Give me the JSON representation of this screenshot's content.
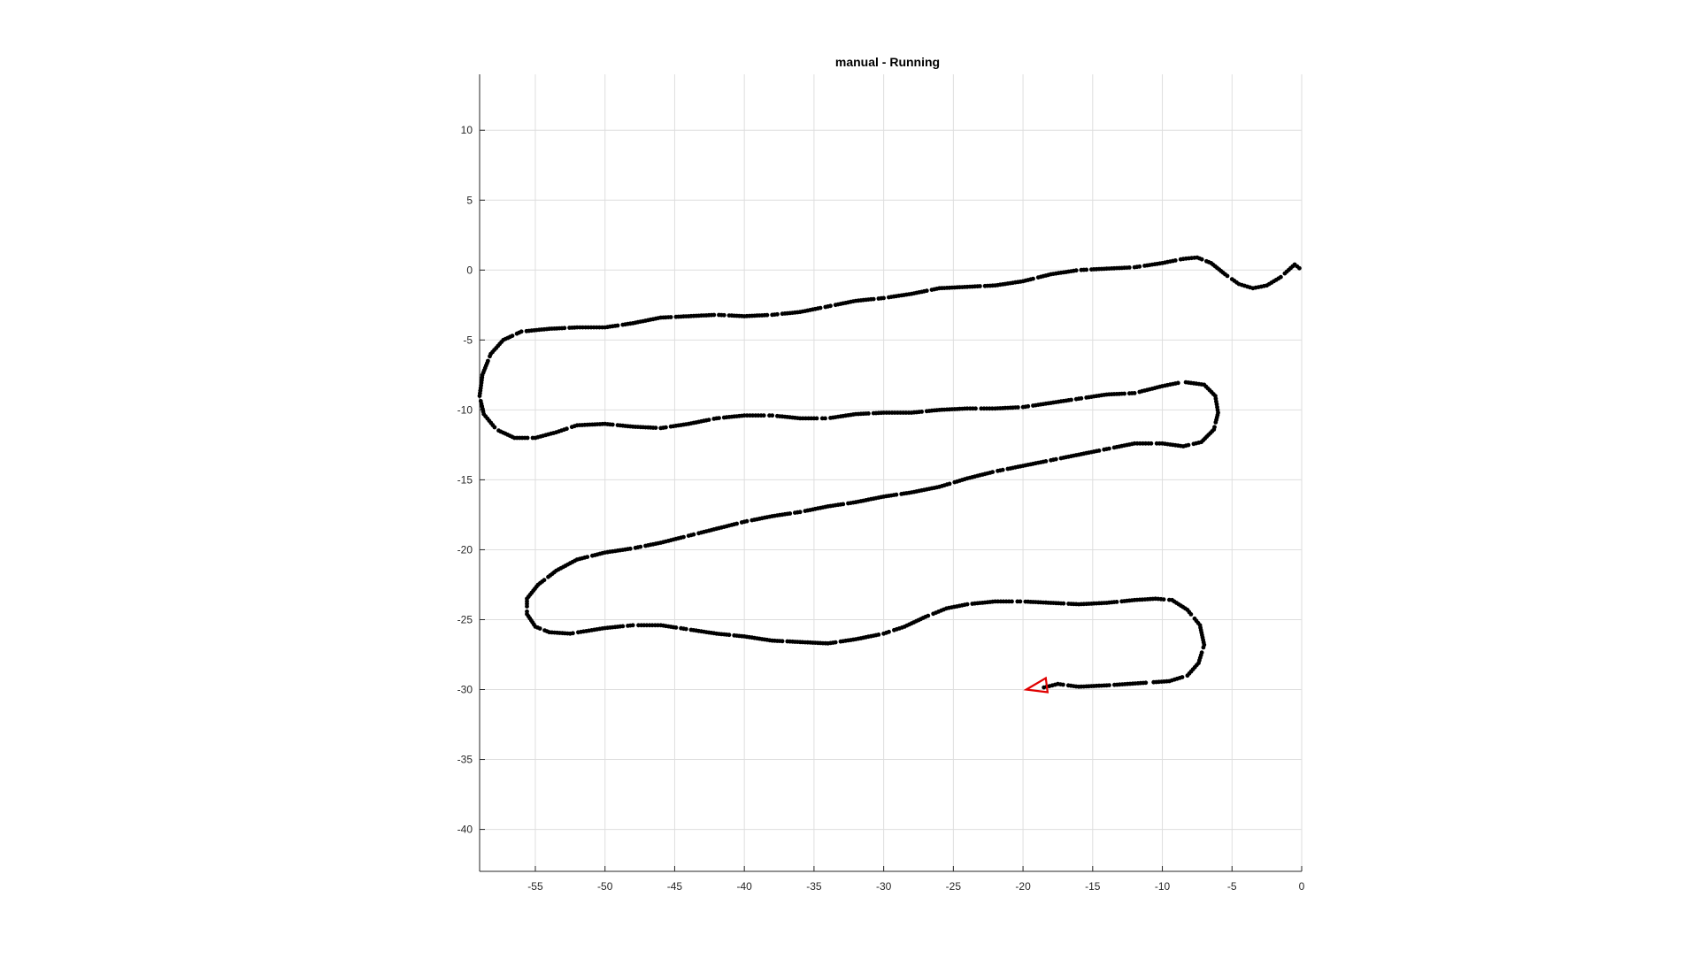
{
  "chart_data": {
    "type": "scatter",
    "title": "manual - Running",
    "xlabel": "",
    "ylabel": "",
    "xlim": [
      -59,
      0
    ],
    "ylim": [
      -43,
      14
    ],
    "xticks": [
      -55,
      -50,
      -45,
      -40,
      -35,
      -30,
      -25,
      -20,
      -15,
      -10,
      -5,
      0
    ],
    "yticks": [
      10,
      5,
      0,
      -5,
      -10,
      -15,
      -20,
      -25,
      -30,
      -35,
      -40
    ],
    "grid": true,
    "colors": {
      "track": "#000000",
      "marker": "#e00000"
    },
    "series": [
      {
        "points": [
          [
            0,
            0
          ],
          [
            -0.5,
            0.4
          ],
          [
            -1.5,
            -0.5
          ],
          [
            -2.5,
            -1.1
          ],
          [
            -3.5,
            -1.3
          ],
          [
            -4.5,
            -1.0
          ],
          [
            -5.5,
            -0.3
          ],
          [
            -6.5,
            0.5
          ],
          [
            -7.5,
            0.9
          ],
          [
            -8.5,
            0.8
          ],
          [
            -10,
            0.5
          ],
          [
            -12,
            0.2
          ],
          [
            -14,
            0.1
          ],
          [
            -16,
            0.0
          ],
          [
            -18,
            -0.3
          ],
          [
            -20,
            -0.8
          ],
          [
            -22,
            -1.1
          ],
          [
            -24,
            -1.2
          ],
          [
            -26,
            -1.3
          ],
          [
            -28,
            -1.7
          ],
          [
            -30,
            -2.0
          ],
          [
            -32,
            -2.2
          ],
          [
            -34,
            -2.6
          ],
          [
            -36,
            -3.0
          ],
          [
            -38,
            -3.2
          ],
          [
            -40,
            -3.3
          ],
          [
            -42,
            -3.2
          ],
          [
            -44,
            -3.3
          ],
          [
            -46,
            -3.4
          ],
          [
            -48,
            -3.8
          ],
          [
            -50,
            -4.1
          ],
          [
            -52,
            -4.1
          ],
          [
            -54,
            -4.2
          ],
          [
            -56,
            -4.4
          ],
          [
            -57.3,
            -5.0
          ],
          [
            -58.2,
            -6.0
          ],
          [
            -58.8,
            -7.5
          ],
          [
            -59.0,
            -9.0
          ],
          [
            -58.7,
            -10.3
          ],
          [
            -57.8,
            -11.4
          ],
          [
            -56.5,
            -12.0
          ],
          [
            -55,
            -12.0
          ],
          [
            -53.5,
            -11.6
          ],
          [
            -52,
            -11.1
          ],
          [
            -50,
            -11.0
          ],
          [
            -48,
            -11.2
          ],
          [
            -46,
            -11.3
          ],
          [
            -44,
            -11.0
          ],
          [
            -42,
            -10.6
          ],
          [
            -40,
            -10.4
          ],
          [
            -38,
            -10.4
          ],
          [
            -36,
            -10.6
          ],
          [
            -34,
            -10.6
          ],
          [
            -32,
            -10.3
          ],
          [
            -30,
            -10.2
          ],
          [
            -28,
            -10.2
          ],
          [
            -26,
            -10.0
          ],
          [
            -24,
            -9.9
          ],
          [
            -22,
            -9.9
          ],
          [
            -20,
            -9.8
          ],
          [
            -18,
            -9.5
          ],
          [
            -16,
            -9.2
          ],
          [
            -14,
            -8.9
          ],
          [
            -12,
            -8.8
          ],
          [
            -10,
            -8.3
          ],
          [
            -8.5,
            -8.0
          ],
          [
            -7.0,
            -8.2
          ],
          [
            -6.2,
            -9.0
          ],
          [
            -6.0,
            -10.2
          ],
          [
            -6.3,
            -11.4
          ],
          [
            -7.2,
            -12.3
          ],
          [
            -8.5,
            -12.6
          ],
          [
            -10,
            -12.4
          ],
          [
            -12,
            -12.4
          ],
          [
            -14,
            -12.8
          ],
          [
            -16,
            -13.2
          ],
          [
            -18,
            -13.6
          ],
          [
            -20,
            -14.0
          ],
          [
            -22,
            -14.4
          ],
          [
            -24,
            -14.9
          ],
          [
            -26,
            -15.5
          ],
          [
            -28,
            -15.9
          ],
          [
            -30,
            -16.2
          ],
          [
            -32,
            -16.6
          ],
          [
            -34,
            -16.9
          ],
          [
            -36,
            -17.3
          ],
          [
            -38,
            -17.6
          ],
          [
            -40,
            -18.0
          ],
          [
            -42,
            -18.5
          ],
          [
            -44,
            -19.0
          ],
          [
            -46,
            -19.5
          ],
          [
            -48,
            -19.9
          ],
          [
            -50,
            -20.2
          ],
          [
            -52,
            -20.7
          ],
          [
            -53.5,
            -21.5
          ],
          [
            -54.8,
            -22.5
          ],
          [
            -55.6,
            -23.5
          ],
          [
            -55.6,
            -24.6
          ],
          [
            -55.0,
            -25.5
          ],
          [
            -54,
            -25.9
          ],
          [
            -52.5,
            -26.0
          ],
          [
            -50,
            -25.6
          ],
          [
            -48,
            -25.4
          ],
          [
            -46,
            -25.4
          ],
          [
            -44,
            -25.7
          ],
          [
            -42,
            -26.0
          ],
          [
            -40,
            -26.2
          ],
          [
            -38,
            -26.5
          ],
          [
            -36,
            -26.6
          ],
          [
            -34,
            -26.7
          ],
          [
            -32,
            -26.4
          ],
          [
            -30,
            -26.0
          ],
          [
            -28.5,
            -25.5
          ],
          [
            -27,
            -24.8
          ],
          [
            -25.5,
            -24.2
          ],
          [
            -24,
            -23.9
          ],
          [
            -22,
            -23.7
          ],
          [
            -20,
            -23.7
          ],
          [
            -18,
            -23.8
          ],
          [
            -16,
            -23.9
          ],
          [
            -14,
            -23.8
          ],
          [
            -12,
            -23.6
          ],
          [
            -10.5,
            -23.5
          ],
          [
            -9.3,
            -23.6
          ],
          [
            -8.2,
            -24.3
          ],
          [
            -7.3,
            -25.4
          ],
          [
            -7.0,
            -26.8
          ],
          [
            -7.4,
            -28.1
          ],
          [
            -8.2,
            -29.0
          ],
          [
            -9.5,
            -29.4
          ],
          [
            -11,
            -29.5
          ],
          [
            -12.5,
            -29.6
          ],
          [
            -14,
            -29.7
          ],
          [
            -16,
            -29.8
          ],
          [
            -17.5,
            -29.6
          ],
          [
            -18.7,
            -29.9
          ]
        ]
      }
    ],
    "marker": {
      "shape": "triangle-left",
      "x": -19.0,
      "y": -30.0
    }
  }
}
